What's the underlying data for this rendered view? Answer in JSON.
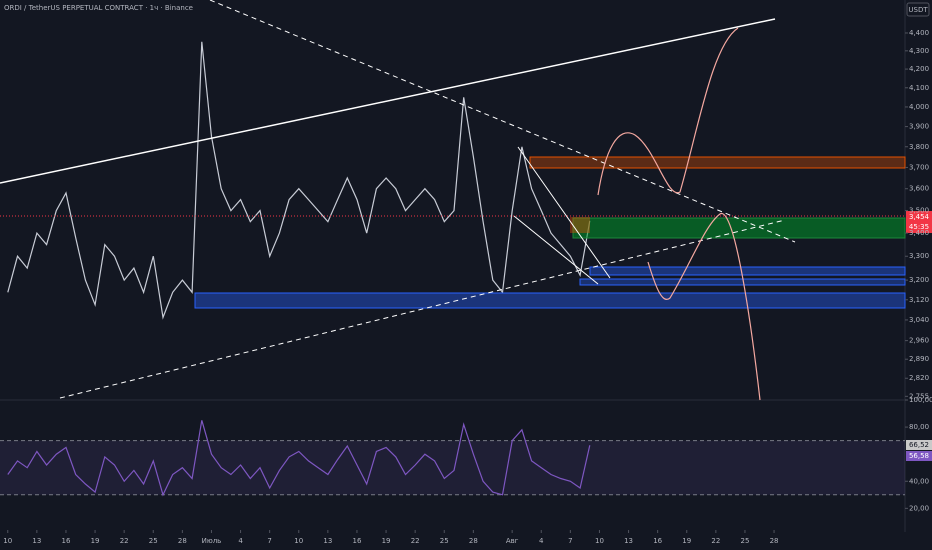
{
  "header": {
    "title": "ORDI / TetherUS PERPETUAL CONTRACT · 1ч · Binance",
    "currency": "USDT",
    "price_badge": "3,454",
    "countdown": "45:35",
    "rsi_badges": [
      "66,52",
      "56,58"
    ]
  },
  "chart_data": [
    {
      "type": "line",
      "color": "#c8ccd6",
      "log_scale": true,
      "x": [
        0,
        1,
        2,
        3,
        4,
        5,
        6,
        7,
        8,
        9,
        10,
        11,
        12,
        13,
        14,
        15,
        16,
        17,
        18,
        19,
        20,
        21,
        22,
        23,
        24,
        25,
        26,
        27,
        28,
        29,
        30,
        31,
        32,
        33,
        34,
        35,
        36,
        37,
        38,
        39,
        40,
        41,
        42,
        43,
        44,
        45,
        46,
        47,
        48,
        49,
        50,
        51,
        52,
        53,
        54,
        55,
        56,
        57,
        58,
        59,
        60
      ],
      "values": [
        3150,
        3300,
        3250,
        3400,
        3350,
        3500,
        3580,
        3380,
        3200,
        3100,
        3350,
        3300,
        3200,
        3250,
        3150,
        3300,
        3050,
        3150,
        3200,
        3150,
        4350,
        3850,
        3600,
        3500,
        3550,
        3450,
        3500,
        3300,
        3400,
        3550,
        3600,
        3550,
        3500,
        3450,
        3550,
        3650,
        3550,
        3400,
        3600,
        3650,
        3600,
        3500,
        3550,
        3600,
        3550,
        3450,
        3500,
        4050,
        3750,
        3450,
        3200,
        3150,
        3500,
        3800,
        3600,
        3500,
        3400,
        3350,
        3300,
        3220,
        3454
      ],
      "xlim": [
        -0.8,
        92.5
      ],
      "ylim": [
        2742,
        4591
      ],
      "yticks": [
        {
          "value": 2755,
          "label": "2,755"
        },
        {
          "value": 2820,
          "label": "2,820"
        },
        {
          "value": 2890,
          "label": "2,890"
        },
        {
          "value": 2960,
          "label": "2,960"
        },
        {
          "value": 3040,
          "label": "3,040"
        },
        {
          "value": 3120,
          "label": "3,120"
        },
        {
          "value": 3200,
          "label": "3,200"
        },
        {
          "value": 3300,
          "label": "3,300"
        },
        {
          "value": 3400,
          "label": "3,400"
        },
        {
          "value": 3500,
          "label": "3,500"
        },
        {
          "value": 3600,
          "label": "3,600"
        },
        {
          "value": 3700,
          "label": "3,700"
        },
        {
          "value": 3800,
          "label": "3,800"
        },
        {
          "value": 3900,
          "label": "3,900"
        },
        {
          "value": 4000,
          "label": "4,000"
        },
        {
          "value": 4100,
          "label": "4,100"
        },
        {
          "value": 4200,
          "label": "4,200"
        },
        {
          "value": 4300,
          "label": "4,300"
        },
        {
          "value": 4400,
          "label": "4,400"
        }
      ]
    },
    {
      "type": "line",
      "color": "#7e57c2",
      "bands": [
        30,
        70
      ],
      "x": [
        0,
        1,
        2,
        3,
        4,
        5,
        6,
        7,
        8,
        9,
        10,
        11,
        12,
        13,
        14,
        15,
        16,
        17,
        18,
        19,
        20,
        21,
        22,
        23,
        24,
        25,
        26,
        27,
        28,
        29,
        30,
        31,
        32,
        33,
        34,
        35,
        36,
        37,
        38,
        39,
        40,
        41,
        42,
        43,
        44,
        45,
        46,
        47,
        48,
        49,
        50,
        51,
        52,
        53,
        54,
        55,
        56,
        57,
        58,
        59,
        60
      ],
      "values": [
        45,
        55,
        50,
        62,
        52,
        60,
        65,
        45,
        38,
        32,
        58,
        52,
        40,
        48,
        38,
        55,
        30,
        45,
        50,
        42,
        85,
        60,
        50,
        45,
        52,
        42,
        50,
        35,
        48,
        58,
        62,
        55,
        50,
        45,
        56,
        66,
        52,
        38,
        62,
        65,
        58,
        45,
        52,
        60,
        55,
        42,
        48,
        82,
        60,
        40,
        32,
        30,
        70,
        78,
        55,
        50,
        45,
        42,
        40,
        35,
        66.52
      ],
      "xlim": [
        -0.8,
        92.5
      ],
      "ylim": [
        4,
        100
      ],
      "yticks": [
        {
          "value": 20,
          "label": "20,00"
        },
        {
          "value": 40,
          "label": "40,00"
        },
        {
          "value": 80,
          "label": "80,00"
        },
        {
          "value": 100,
          "label": "100,00"
        }
      ],
      "xticks": [
        {
          "value": 0,
          "label": "10"
        },
        {
          "value": 3,
          "label": "13"
        },
        {
          "value": 6,
          "label": "16"
        },
        {
          "value": 9,
          "label": "19"
        },
        {
          "value": 12,
          "label": "22"
        },
        {
          "value": 15,
          "label": "25"
        },
        {
          "value": 18,
          "label": "28"
        },
        {
          "value": 21,
          "label": "Июль"
        },
        {
          "value": 24,
          "label": "4"
        },
        {
          "value": 27,
          "label": "7"
        },
        {
          "value": 30,
          "label": "10"
        },
        {
          "value": 33,
          "label": "13"
        },
        {
          "value": 36,
          "label": "16"
        },
        {
          "value": 39,
          "label": "19"
        },
        {
          "value": 42,
          "label": "22"
        },
        {
          "value": 45,
          "label": "25"
        },
        {
          "value": 48,
          "label": "28"
        },
        {
          "value": 52,
          "label": "Авг"
        },
        {
          "value": 55,
          "label": "4"
        },
        {
          "value": 58,
          "label": "7"
        },
        {
          "value": 61,
          "label": "10"
        },
        {
          "value": 64,
          "label": "13"
        },
        {
          "value": 67,
          "label": "16"
        },
        {
          "value": 70,
          "label": "19"
        },
        {
          "value": 73,
          "label": "22"
        },
        {
          "value": 76,
          "label": "25"
        },
        {
          "value": 79,
          "label": "28"
        }
      ]
    }
  ]
}
